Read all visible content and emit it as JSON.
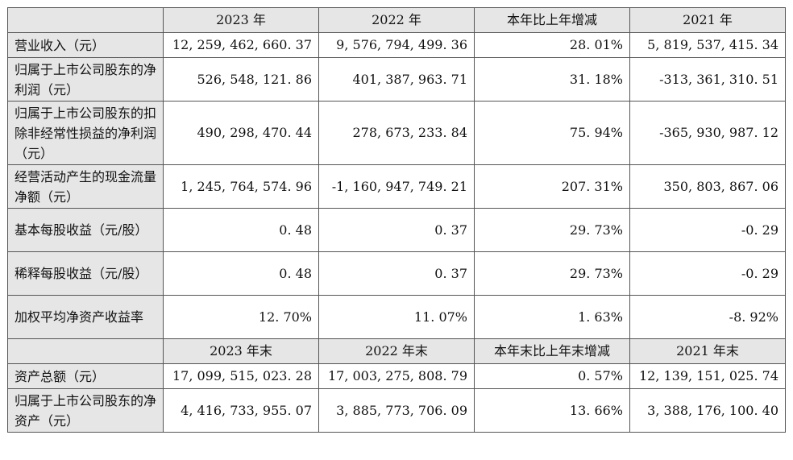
{
  "header_current": {
    "c1": "2023 年",
    "c2": "2022 年",
    "c3": "本年比上年增减",
    "c4": "2021 年"
  },
  "rows_income": [
    {
      "label": "营业收入（元）",
      "v2023": "12, 259, 462, 660. 37",
      "v2022": "9, 576, 794, 499. 36",
      "change": "28. 01%",
      "v2021": "5, 819, 537, 415. 34"
    },
    {
      "label": "归属于上市公司股东的净利润（元）",
      "v2023": "526, 548, 121. 86",
      "v2022": "401, 387, 963. 71",
      "change": "31. 18%",
      "v2021": "-313, 361, 310. 51"
    },
    {
      "label": "归属于上市公司股东的扣除非经常性损益的净利润（元）",
      "v2023": "490, 298, 470. 44",
      "v2022": "278, 673, 233. 84",
      "change": "75. 94%",
      "v2021": "-365, 930, 987. 12"
    },
    {
      "label": "经营活动产生的现金流量净额（元）",
      "v2023": "1, 245, 764, 574. 96",
      "v2022": "-1, 160, 947, 749. 21",
      "change": "207. 31%",
      "v2021": "350, 803, 867. 06"
    },
    {
      "label": "基本每股收益（元/股）",
      "v2023": "0. 48",
      "v2022": "0. 37",
      "change": "29. 73%",
      "v2021": "-0. 29"
    },
    {
      "label": "稀释每股收益（元/股）",
      "v2023": "0. 48",
      "v2022": "0. 37",
      "change": "29. 73%",
      "v2021": "-0. 29"
    },
    {
      "label": "加权平均净资产收益率",
      "v2023": "12. 70%",
      "v2022": "11. 07%",
      "change": "1. 63%",
      "v2021": "-8. 92%"
    }
  ],
  "header_end": {
    "c1": "2023 年末",
    "c2": "2022 年末",
    "c3": "本年末比上年末增减",
    "c4": "2021 年末"
  },
  "rows_balance": [
    {
      "label": "资产总额（元）",
      "v2023": "17, 099, 515, 023. 28",
      "v2022": "17, 003, 275, 808. 79",
      "change": "0. 57%",
      "v2021": "12, 139, 151, 025. 74"
    },
    {
      "label": "归属于上市公司股东的净资产（元）",
      "v2023": "4, 416, 733, 955. 07",
      "v2022": "3, 885, 773, 706. 09",
      "change": "13. 66%",
      "v2021": "3, 388, 176, 100. 40"
    }
  ]
}
